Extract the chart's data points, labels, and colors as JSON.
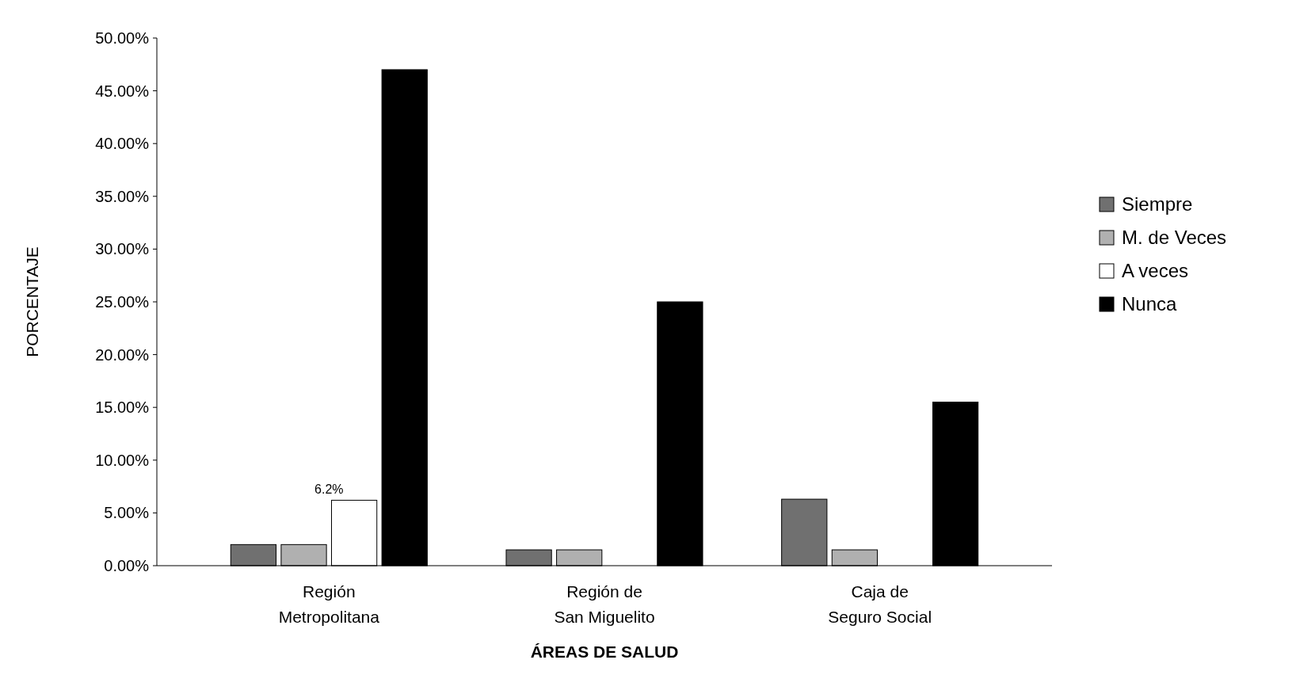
{
  "chart_data": {
    "type": "bar",
    "xlabel": "ÁREAS DE SALUD",
    "ylabel": "PORCENTAJE",
    "categories": [
      "Región\nMetropolitana",
      "Región de\nSan Miguelito",
      "Caja de\nSeguro Social"
    ],
    "series": [
      {
        "name": "Siempre",
        "color": "#707070",
        "values": [
          2,
          1.5,
          6.3
        ]
      },
      {
        "name": "M. de Veces",
        "color": "#b0b0b0",
        "values": [
          2,
          1.5,
          1.5
        ]
      },
      {
        "name": "A veces",
        "color": "#ffffff",
        "values": [
          6.2,
          0,
          0
        ]
      },
      {
        "name": "Nunca",
        "color": "#000000",
        "values": [
          47,
          25,
          15.5
        ]
      }
    ],
    "ylim": [
      0,
      50
    ],
    "yticks": [
      {
        "value": 0,
        "label": "0.00%"
      },
      {
        "value": 5,
        "label": "5.00%"
      },
      {
        "value": 10,
        "label": "10.00%"
      },
      {
        "value": 15,
        "label": "15.00%"
      },
      {
        "value": 20,
        "label": "20.00%"
      },
      {
        "value": 25,
        "label": "25.00%"
      },
      {
        "value": 30,
        "label": "30.00%"
      },
      {
        "value": 35,
        "label": "35.00%"
      },
      {
        "value": 40,
        "label": "40.00%"
      },
      {
        "value": 45,
        "label": "45.00%"
      },
      {
        "value": 50,
        "label": "50.00%"
      }
    ],
    "annotations": [
      {
        "text": "6.2%",
        "x": "Región\nMetropolitana",
        "y": 6.2
      }
    ],
    "legend": "right",
    "grid": false
  }
}
